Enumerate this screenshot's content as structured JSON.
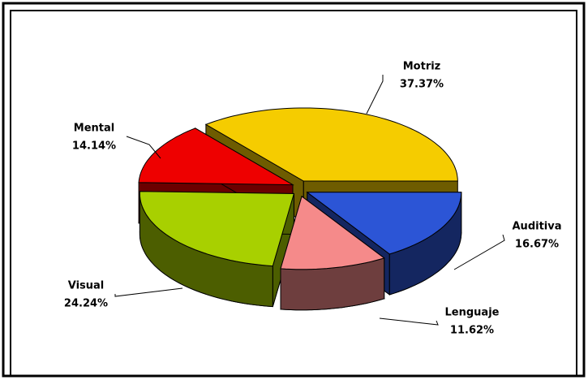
{
  "chart_data": {
    "type": "pie",
    "categories": [
      "Motriz",
      "Auditiva",
      "Lenguaje",
      "Visual",
      "Mental"
    ],
    "values": [
      37.37,
      16.67,
      11.62,
      24.24,
      14.14
    ],
    "value_labels": [
      "37.37%",
      "16.67%",
      "11.62%",
      "24.24%",
      "14.14%"
    ],
    "colors": [
      "#f5cc00",
      "#2c55d6",
      "#f58a8a",
      "#a8d000",
      "#ee0000"
    ]
  }
}
